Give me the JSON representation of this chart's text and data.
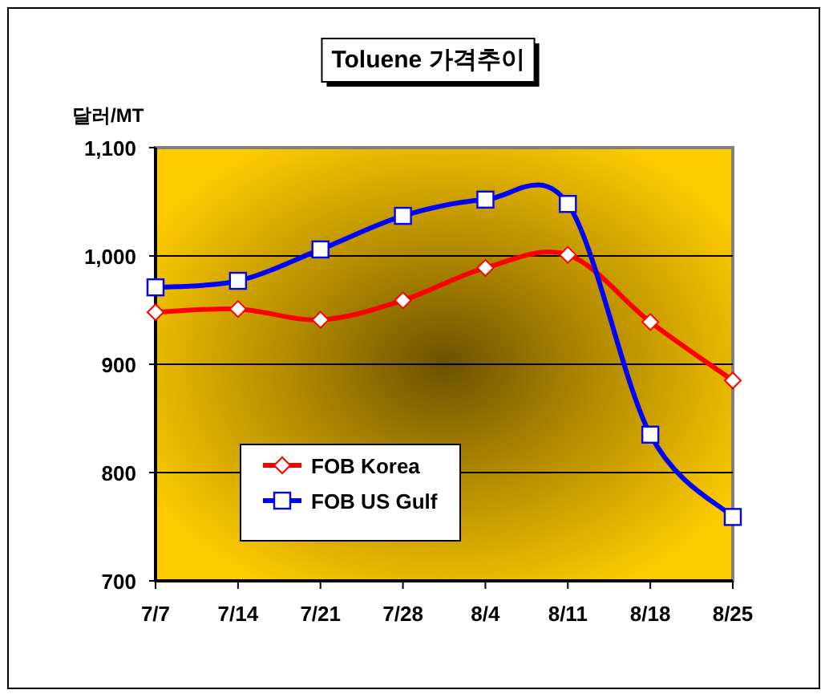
{
  "chart_data": {
    "type": "line",
    "title": "Toluene 가격추이",
    "ylabel": "달러/MT",
    "categories": [
      "7/7",
      "7/14",
      "7/21",
      "7/28",
      "8/4",
      "8/11",
      "8/18",
      "8/25"
    ],
    "series": [
      {
        "name": "FOB Korea",
        "color": "#ff0000",
        "marker": "diamond",
        "values": [
          948,
          951,
          941,
          959,
          989,
          1001,
          939,
          885
        ]
      },
      {
        "name": "FOB US Gulf",
        "color": "#0000ff",
        "marker": "square",
        "values": [
          971,
          977,
          1006,
          1037,
          1052,
          1048,
          835,
          759
        ]
      }
    ],
    "ylim": [
      700,
      1100
    ],
    "yticks": [
      700,
      800,
      900,
      {
        "value": 1000,
        "label": "1,000"
      },
      {
        "value": 1100,
        "label": "1,100"
      }
    ],
    "grid": "y",
    "legend": "bottom left",
    "line_style": "solid"
  }
}
